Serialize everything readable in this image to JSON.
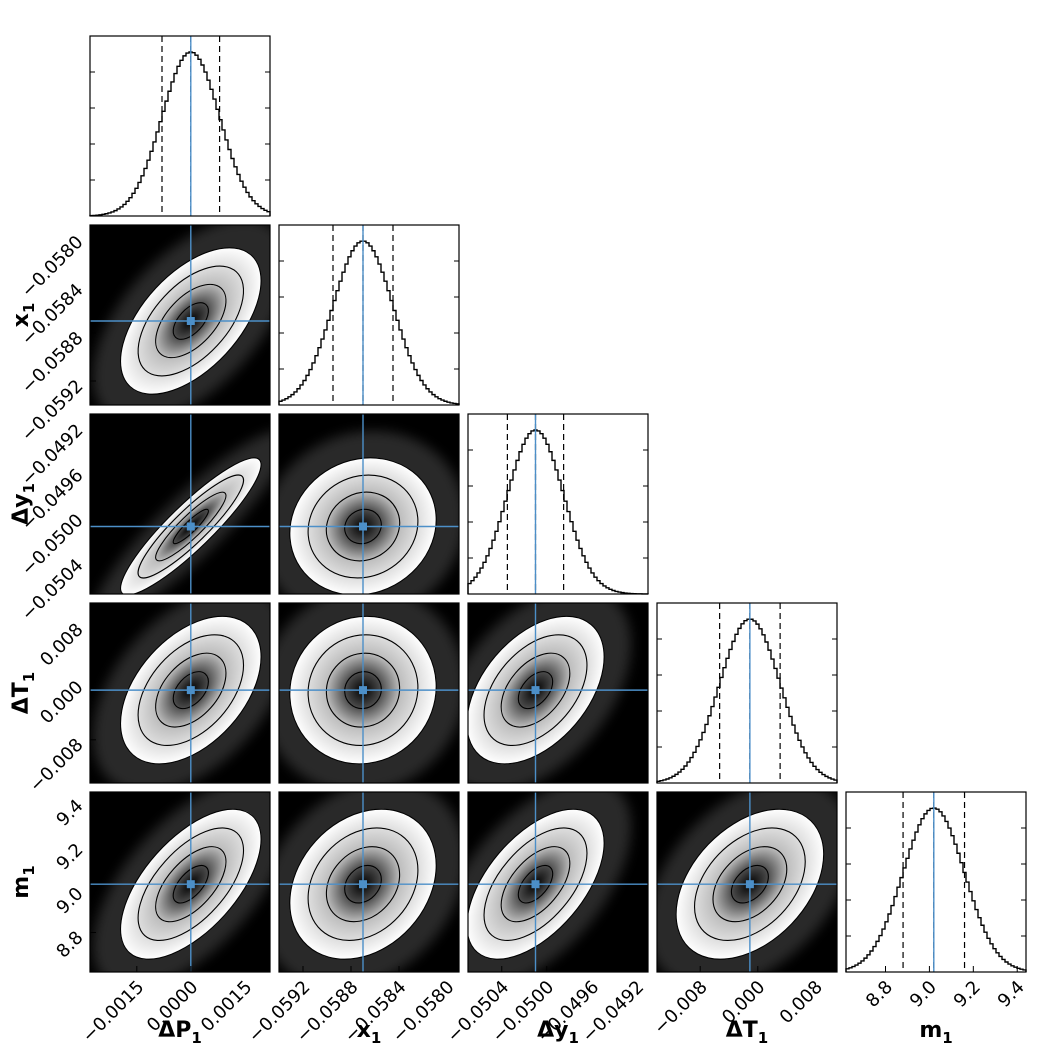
{
  "chart_data": {
    "type": "corner",
    "colors": {
      "truth": "#4c8fc8",
      "density_dark": "#000000",
      "density_light": "#ffffff",
      "contour": "#000000"
    },
    "parameters": [
      {
        "key": "dP1",
        "name": "ΔP",
        "sub": "1",
        "ylabel_shown": false,
        "range": [
          -0.0028,
          0.0022
        ],
        "truth": 0.0,
        "mean": 0.0,
        "sigma": 0.0008,
        "quantiles": [
          -0.0008,
          0.0,
          0.0008
        ],
        "ticks": [
          -0.0015,
          0.0,
          0.0015
        ],
        "tick_labels": [
          "−0.0015",
          "0.0000",
          "0.0015"
        ]
      },
      {
        "key": "x1",
        "name": "x",
        "sub": "1",
        "ylabel_shown": true,
        "range": [
          -0.0594,
          -0.0579
        ],
        "truth": -0.0587,
        "mean": -0.0587,
        "sigma": 0.00025,
        "quantiles": [
          -0.05895,
          -0.0587,
          -0.05845
        ],
        "ticks": [
          -0.0592,
          -0.0588,
          -0.0584,
          -0.058
        ],
        "tick_labels": [
          "−0.0592",
          "−0.0588",
          "−0.0584",
          "−0.0580"
        ]
      },
      {
        "key": "y1",
        "name": "Δy",
        "sub": "1",
        "ylabel_shown": true,
        "range": [
          -0.0507,
          -0.0491
        ],
        "truth": -0.0501,
        "mean": -0.0501,
        "sigma": 0.00025,
        "quantiles": [
          -0.05035,
          -0.0501,
          -0.04985
        ],
        "ticks": [
          -0.0504,
          -0.05,
          -0.0496,
          -0.0492
        ],
        "tick_labels": [
          "−0.0504",
          "−0.0500",
          "−0.0496",
          "−0.0492"
        ]
      },
      {
        "key": "T1",
        "name": "ΔT",
        "sub": "1",
        "ylabel_shown": true,
        "range": [
          -0.014,
          0.011
        ],
        "truth": -0.0011,
        "mean": -0.0011,
        "sigma": 0.0042,
        "quantiles": [
          -0.0053,
          -0.0011,
          0.0031
        ],
        "ticks": [
          -0.008,
          0.0,
          0.008
        ],
        "tick_labels": [
          "−0.008",
          "0.000",
          "0.008"
        ]
      },
      {
        "key": "m1",
        "name": "m",
        "sub": "1",
        "ylabel_shown": true,
        "range": [
          8.62,
          9.44
        ],
        "truth": 9.02,
        "mean": 9.02,
        "sigma": 0.14,
        "quantiles": [
          8.88,
          9.02,
          9.16
        ],
        "ticks": [
          8.8,
          9.0,
          9.2,
          9.4
        ],
        "tick_labels": [
          "8.8",
          "9.0",
          "9.2",
          "9.4"
        ]
      }
    ],
    "correlations": [
      [
        1.0,
        0.55,
        0.9,
        0.45,
        0.6
      ],
      [
        0.55,
        1.0,
        0.1,
        0.05,
        0.25
      ],
      [
        0.9,
        0.1,
        1.0,
        0.45,
        0.55
      ],
      [
        0.45,
        0.05,
        0.45,
        1.0,
        0.4
      ],
      [
        0.6,
        0.25,
        0.55,
        0.4,
        1.0
      ]
    ],
    "contour_levels_sigma": [
      0.5,
      1.0,
      1.5,
      2.0
    ]
  }
}
